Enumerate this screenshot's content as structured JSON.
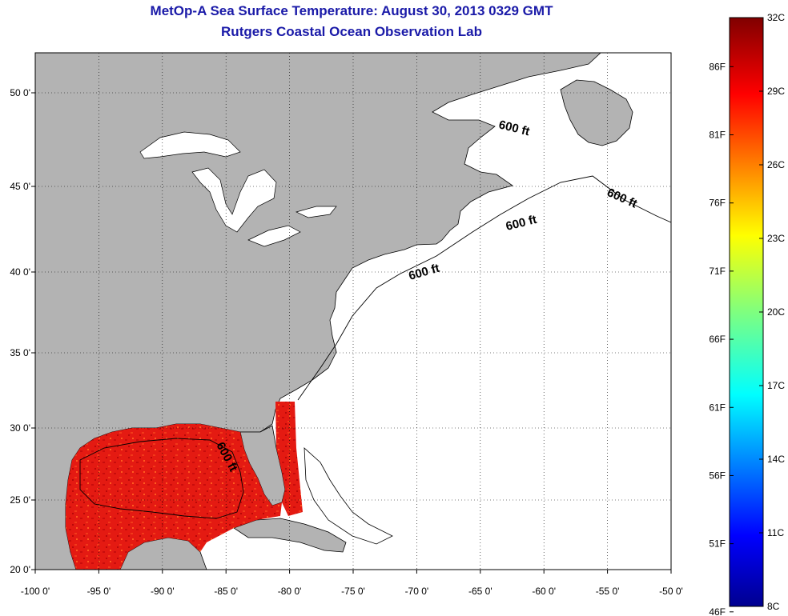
{
  "title_line1": "MetOp-A Sea Surface Temperature:  August 30, 2013 0329 GMT",
  "title_line2": "Rutgers Coastal Ocean Observation Lab",
  "map": {
    "lon_ticks": [
      "-100 0'",
      "-95 0'",
      "-90 0'",
      "-85 0'",
      "-80 0'",
      "-75 0'",
      "-70 0'",
      "-65 0'",
      "-60 0'",
      "-55 0'",
      "-50 0'"
    ],
    "lat_ticks": [
      "50 0'",
      "45 0'",
      "40 0'",
      "35 0'",
      "30 0'",
      "25 0'",
      "20 0'"
    ],
    "lon_values": [
      -100,
      -95,
      -90,
      -85,
      -80,
      -75,
      -70,
      -65,
      -60,
      -55,
      -50
    ],
    "lat_values": [
      50,
      45,
      40,
      35,
      30,
      25,
      20
    ],
    "contour_labels": [
      "600 ft",
      "600 ft",
      "600 ft",
      "600 ft",
      "600 ft"
    ],
    "colors": {
      "land": "#b3b3b3",
      "ocean": "#ffffff",
      "sst_warm": "#e01010"
    }
  },
  "colorbar": {
    "celsius": [
      "32C",
      "29C",
      "26C",
      "23C",
      "20C",
      "17C",
      "14C",
      "11C",
      "8C"
    ],
    "fahrenheit": [
      "86F",
      "81F",
      "76F",
      "71F",
      "66F",
      "61F",
      "56F",
      "51F",
      "46F"
    ],
    "celsius_values": [
      32,
      29,
      26,
      23,
      20,
      17,
      14,
      11,
      8
    ],
    "fahrenheit_values": [
      86,
      81,
      76,
      71,
      66,
      61,
      56,
      51,
      46
    ],
    "range_c": [
      8,
      32
    ]
  }
}
